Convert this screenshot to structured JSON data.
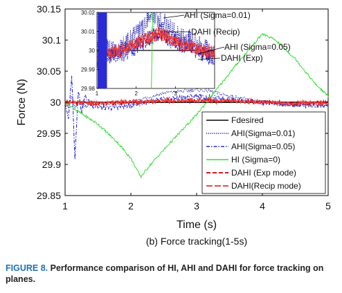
{
  "chart_data": {
    "type": "line",
    "subtitle": "(b) Force tracking(1-5s)",
    "xlabel": "Time (s)",
    "ylabel": "Force (N)",
    "xlim": [
      1,
      5
    ],
    "ylim": [
      29.85,
      30.15
    ],
    "xticks": [
      "1",
      "2",
      "3",
      "4",
      "5"
    ],
    "yticks": [
      "29.85",
      "29.9",
      "29.95",
      "30",
      "30.05",
      "30.1",
      "30.15"
    ],
    "grid": false,
    "legend_position": "bottom-right",
    "series": [
      {
        "name": "Fdesired",
        "color": "#000000",
        "style": "solid",
        "x": [
          1,
          5
        ],
        "y": [
          30.0,
          30.0
        ]
      },
      {
        "name": "AHI(Sigma=0.01)",
        "color": "#1a1aa8",
        "style": "dotted",
        "x": [
          1.0,
          1.05,
          1.1,
          1.15,
          1.2,
          1.3,
          1.5,
          2.0,
          2.5,
          3.0,
          3.2,
          3.5,
          4.0,
          4.5,
          5.0
        ],
        "y": [
          30.0,
          29.99,
          30.01,
          29.99,
          30.0,
          29.995,
          29.995,
          30.0,
          30.015,
          30.02,
          30.018,
          30.01,
          30.0,
          29.995,
          29.995
        ]
      },
      {
        "name": "AHI(Sigma=0.05)",
        "color": "#2a2ad6",
        "style": "dashdot",
        "x": [
          1.0,
          1.05,
          1.1,
          1.15,
          1.2,
          1.25,
          1.3,
          1.4,
          1.6,
          2.0,
          2.5,
          3.0,
          3.2,
          3.5,
          4.0,
          4.5,
          5.0
        ],
        "y": [
          30.0,
          29.97,
          30.045,
          29.91,
          30.02,
          29.985,
          30.01,
          29.995,
          29.99,
          29.995,
          30.005,
          30.01,
          30.008,
          30.005,
          30.0,
          29.995,
          29.995
        ]
      },
      {
        "name": "HI (Sigma=0)",
        "color": "#33dd33",
        "style": "solid",
        "x": [
          1.0,
          1.2,
          1.5,
          1.8,
          2.0,
          2.15,
          2.3,
          2.6,
          3.0,
          3.3,
          3.6,
          4.0,
          4.2,
          4.5,
          4.8,
          5.0
        ],
        "y": [
          30.0,
          29.985,
          29.965,
          29.935,
          29.91,
          29.88,
          29.9,
          29.935,
          29.98,
          30.02,
          30.06,
          30.11,
          30.1,
          30.07,
          30.03,
          30.01
        ]
      },
      {
        "name": "DAHI (Exp mode)",
        "color": "#dd1111",
        "style": "dashed",
        "x": [
          1.0,
          1.5,
          2.0,
          2.5,
          3.0,
          3.5,
          4.0,
          4.5,
          5.0
        ],
        "y": [
          30.0,
          29.998,
          30.0,
          30.002,
          30.003,
          30.002,
          30.0,
          29.999,
          29.999
        ]
      },
      {
        "name": "DAHI(Recip mode)",
        "color": "#e84848",
        "style": "longdash",
        "x": [
          1.0,
          1.5,
          2.0,
          2.5,
          3.0,
          3.5,
          4.0,
          4.5,
          5.0
        ],
        "y": [
          30.0,
          29.999,
          30.001,
          30.003,
          30.003,
          30.002,
          30.0,
          29.999,
          29.998
        ]
      }
    ],
    "inset": {
      "xlim": [
        1,
        4
      ],
      "ylim": [
        29.98,
        30.02
      ],
      "xticks": [
        "1",
        "2",
        "3"
      ],
      "yticks": [
        "29.98",
        "29.99",
        "30",
        "30.01",
        "30.02"
      ],
      "annotations": [
        "AHI (Sigma=0.01)",
        "DAHI (Recip)",
        "AHI (Sigma=0.05)",
        "DAHI (Exp)"
      ]
    }
  },
  "caption": {
    "figure_number": "FIGURE 8.",
    "text": "Performance comparison of HI, AHI and DAHI for force tracking on planes."
  }
}
